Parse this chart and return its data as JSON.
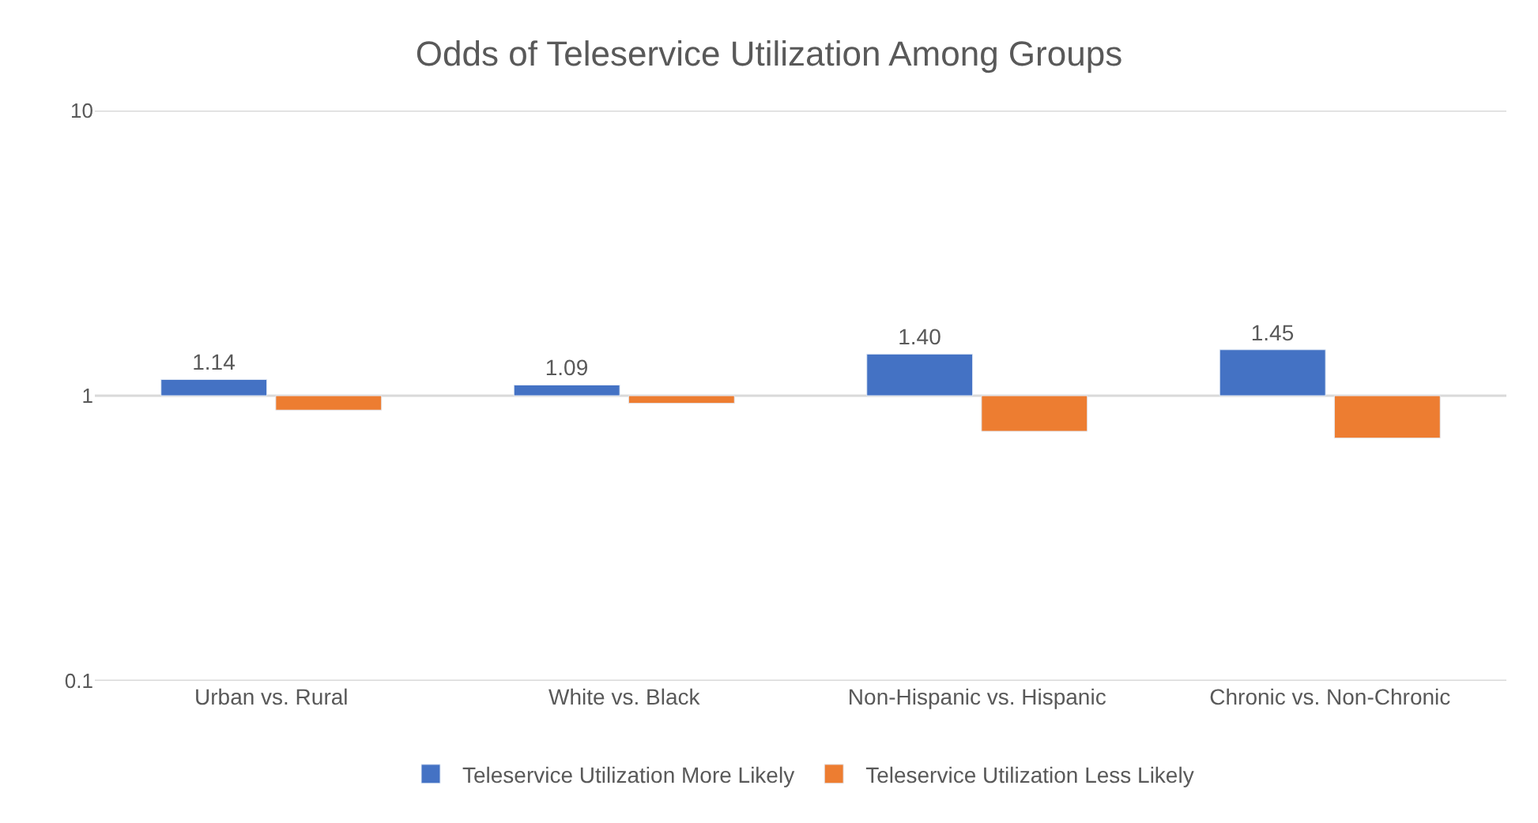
{
  "chart_data": {
    "type": "bar",
    "title": "Odds of Teleservice Utilization Among Groups",
    "categories": [
      "Urban vs. Rural",
      "White vs. Black",
      "Non-Hispanic vs. Hispanic",
      "Chronic vs. Non-Chronic"
    ],
    "series": [
      {
        "name": "Teleservice Utilization More Likely",
        "color": "#4472c4",
        "base": [
          1,
          1,
          1,
          1
        ],
        "values": [
          0.14,
          0.09,
          0.4,
          0.45
        ],
        "value_labels": [
          "1.14",
          "1.09",
          "1.40",
          "1.45"
        ]
      },
      {
        "name": "Teleservice Utilization Less Likely",
        "color": "#ed7d31",
        "base": [
          1,
          1,
          1,
          1
        ],
        "values": [
          -0.11,
          -0.06,
          -0.25,
          -0.29
        ]
      }
    ],
    "log": "y",
    "ylim": [
      0.1,
      10
    ],
    "yticks": [
      0.1,
      1,
      10
    ],
    "grid": "y",
    "legend": "bottom"
  }
}
